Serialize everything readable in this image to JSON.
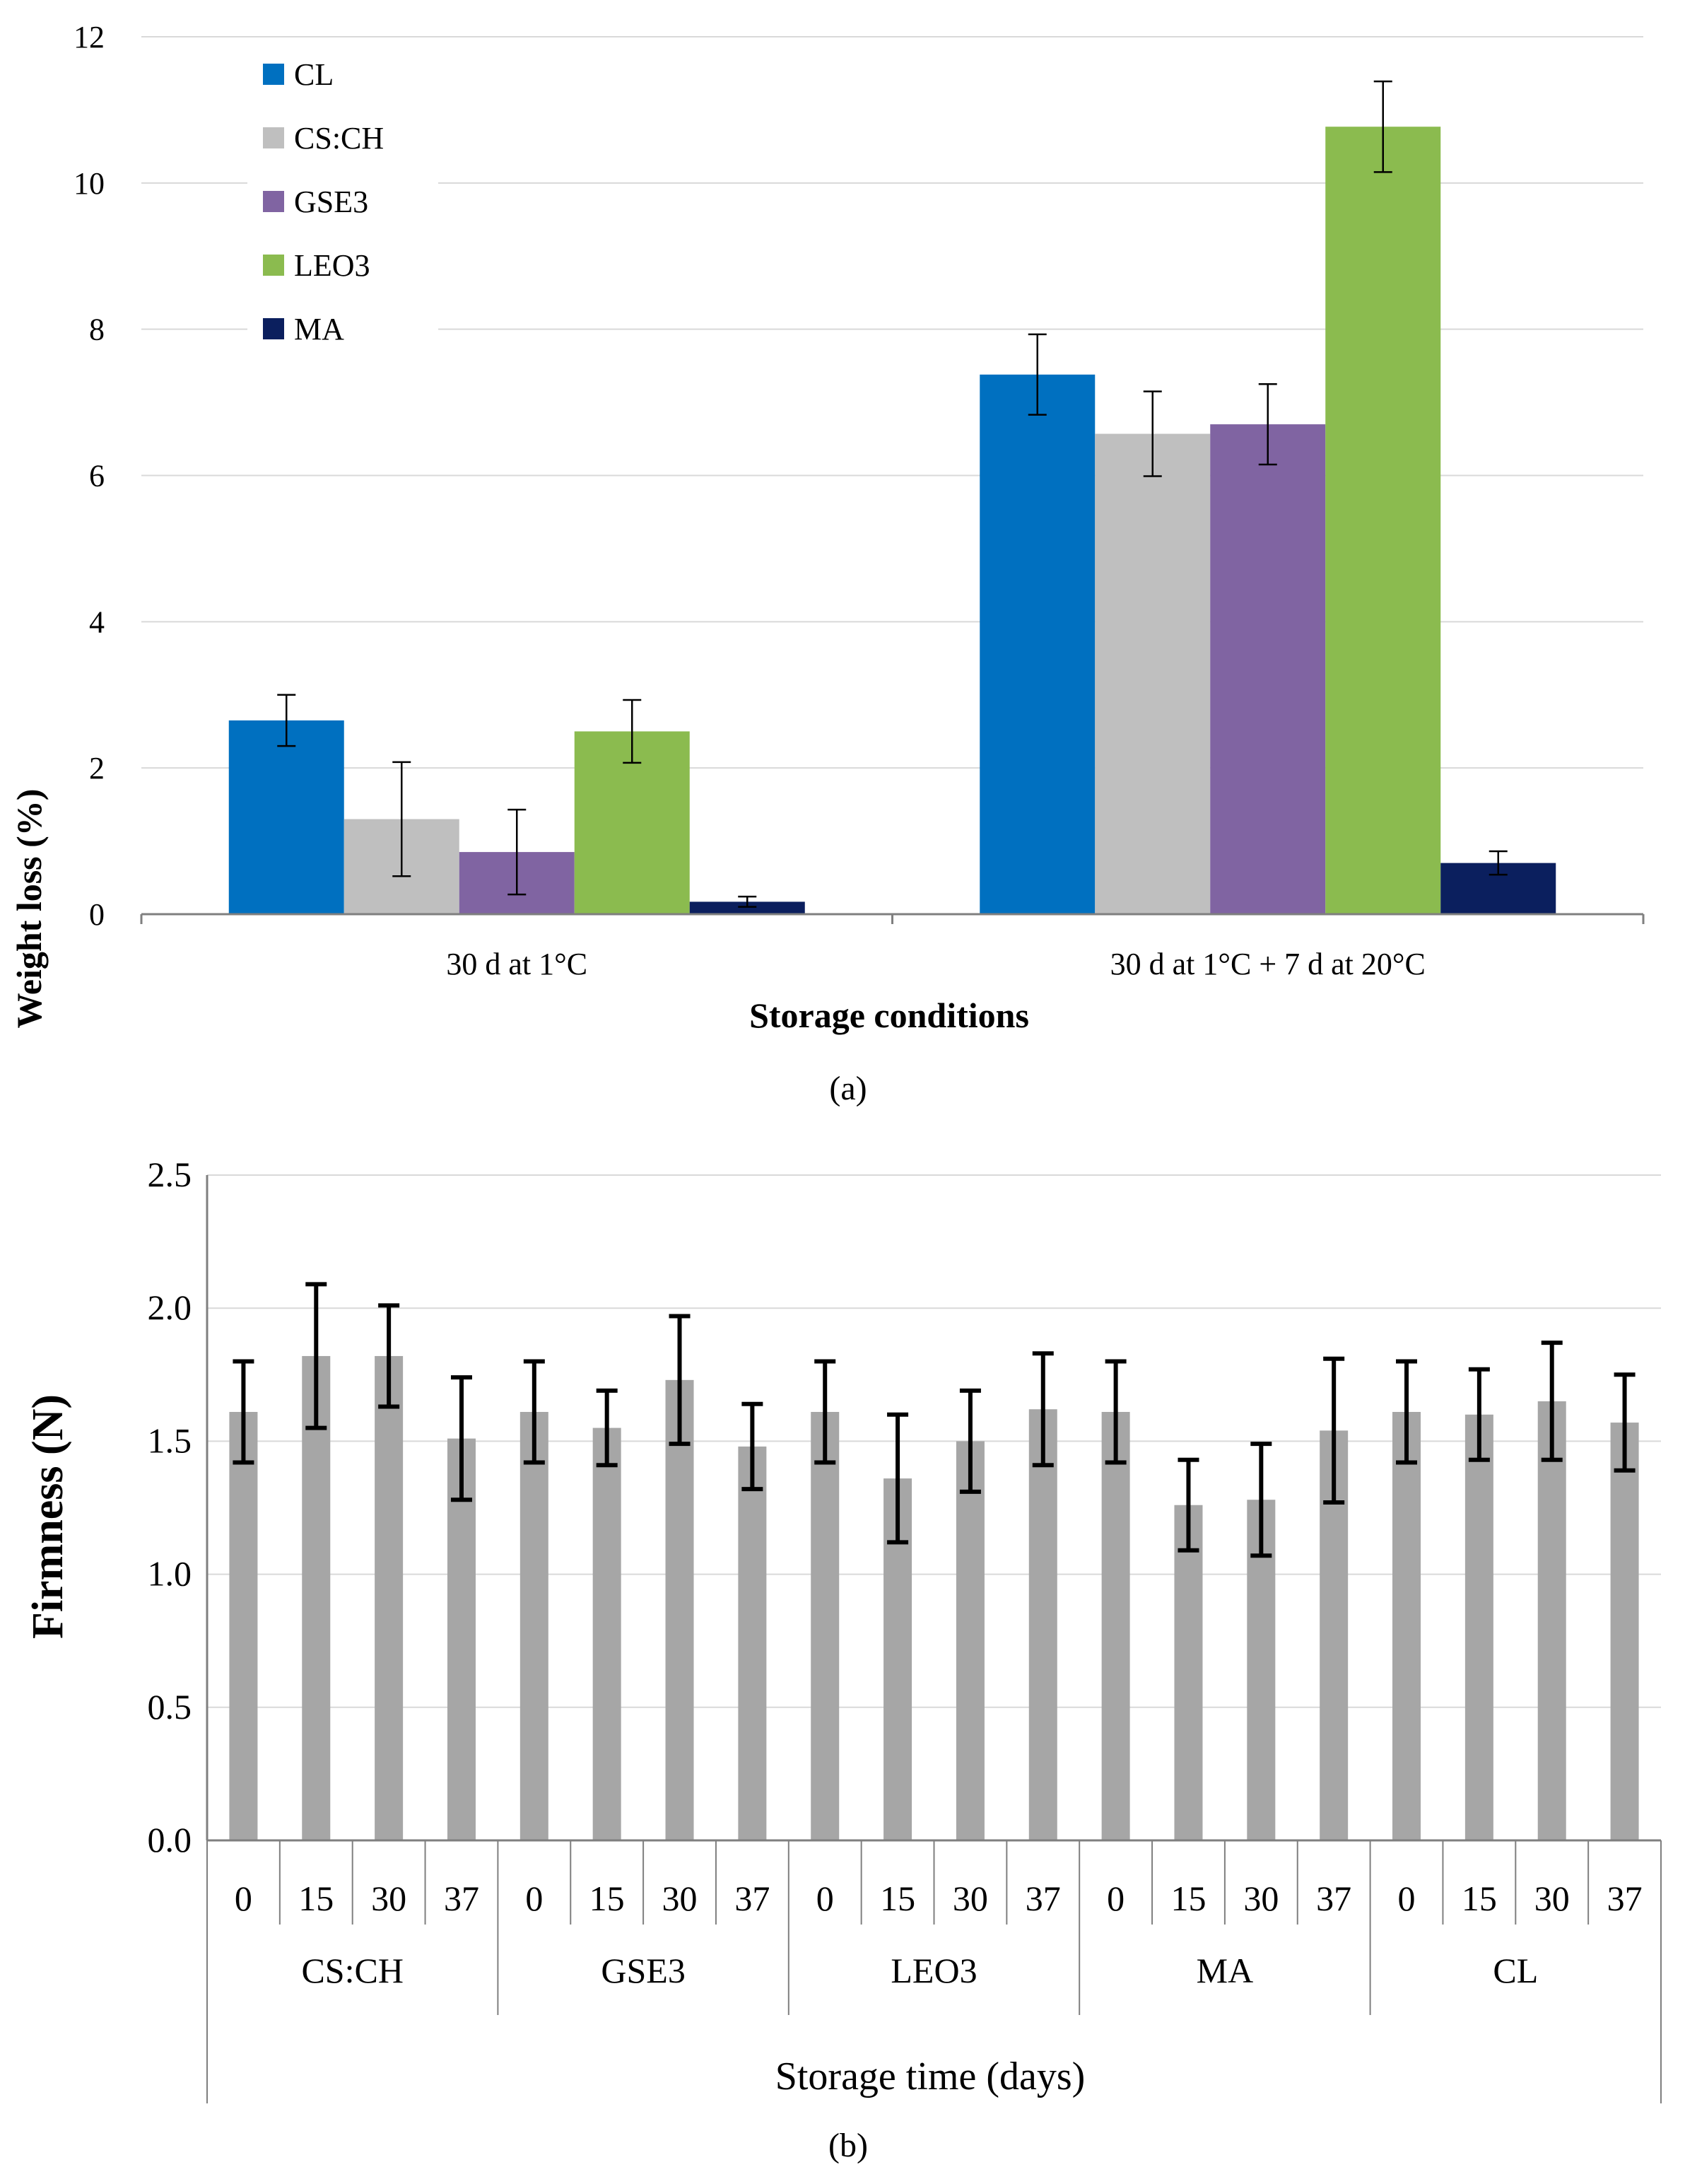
{
  "chart_data": [
    {
      "type": "bar",
      "title": "",
      "xlabel": "Storage conditions",
      "ylabel": "Weight loss (%)",
      "ylim": [
        0,
        12
      ],
      "yticks": [
        0,
        2,
        4,
        6,
        8,
        10,
        12
      ],
      "grid": true,
      "legend": "top-left",
      "categories": [
        "30 d at 1°C",
        "30 d at 1°C + 7 d at 20°C"
      ],
      "series": [
        {
          "name": "CL",
          "color": "#0070C0",
          "values": [
            2.65,
            7.38
          ],
          "errors": [
            0.35,
            0.55
          ]
        },
        {
          "name": "CS:CH",
          "color": "#BFBFBF",
          "values": [
            1.3,
            6.57
          ],
          "errors": [
            0.78,
            0.58
          ]
        },
        {
          "name": "GSE3",
          "color": "#8064A2",
          "values": [
            0.85,
            6.7
          ],
          "errors": [
            0.58,
            0.55
          ]
        },
        {
          "name": "LEO3",
          "color": "#8BBB4F",
          "values": [
            2.5,
            10.77
          ],
          "errors": [
            0.43,
            0.62
          ]
        },
        {
          "name": "MA",
          "color": "#0B1F5E",
          "values": [
            0.17,
            0.7
          ],
          "errors": [
            0.07,
            0.16
          ]
        }
      ],
      "caption": "(a)"
    },
    {
      "type": "bar",
      "title": "",
      "xlabel": "Storage time (days)",
      "ylabel": "Firmness (N)",
      "ylim": [
        0,
        2.5
      ],
      "yticks": [
        "0.0",
        "0.5",
        "1.0",
        "1.5",
        "2.0",
        "2.5"
      ],
      "grid": true,
      "bar_color": "#A6A6A6",
      "days": [
        "0",
        "15",
        "30",
        "37"
      ],
      "groups": [
        {
          "name": "CS:CH",
          "values": [
            1.61,
            1.82,
            1.82,
            1.51
          ],
          "errors": [
            0.19,
            0.27,
            0.19,
            0.23
          ]
        },
        {
          "name": "GSE3",
          "values": [
            1.61,
            1.55,
            1.73,
            1.48
          ],
          "errors": [
            0.19,
            0.14,
            0.24,
            0.16
          ]
        },
        {
          "name": "LEO3",
          "values": [
            1.61,
            1.36,
            1.5,
            1.62
          ],
          "errors": [
            0.19,
            0.24,
            0.19,
            0.21
          ]
        },
        {
          "name": "MA",
          "values": [
            1.61,
            1.26,
            1.28,
            1.54
          ],
          "errors": [
            0.19,
            0.17,
            0.21,
            0.27
          ]
        },
        {
          "name": "CL",
          "values": [
            1.61,
            1.6,
            1.65,
            1.57
          ],
          "errors": [
            0.19,
            0.17,
            0.22,
            0.18
          ]
        }
      ],
      "caption": "(b)"
    }
  ]
}
